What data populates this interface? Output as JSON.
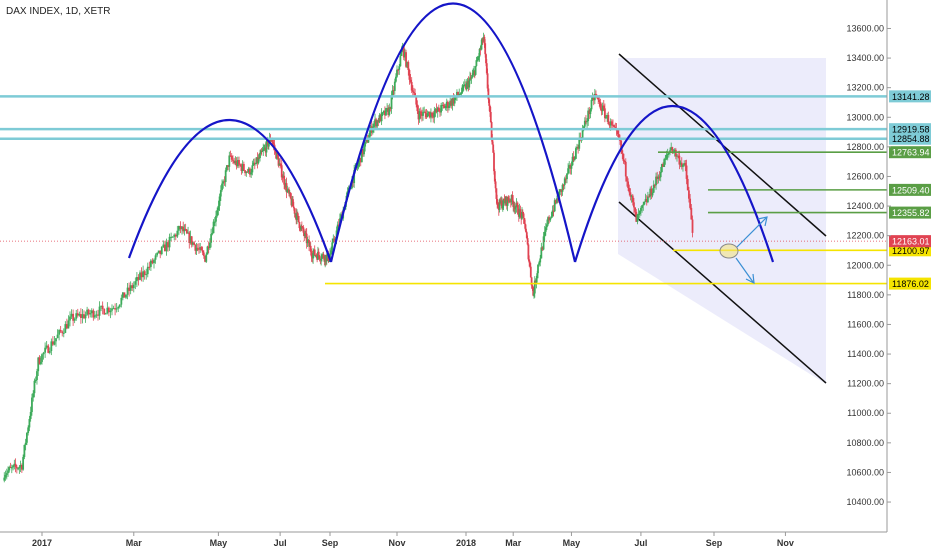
{
  "chart_data": {
    "type": "candlestick",
    "title": "DAX INDEX, 1D, XETR",
    "x_ticks": [
      "2017",
      "Mar",
      "May",
      "Jul",
      "Sep",
      "Nov",
      "2018",
      "Mar",
      "May",
      "Jul",
      "Sep",
      "Nov"
    ],
    "y_ticks": [
      10400,
      10600,
      10800,
      11000,
      11200,
      11400,
      11600,
      11800,
      12000,
      12200,
      12400,
      12600,
      12800,
      13000,
      13200,
      13400,
      13600
    ],
    "ylim": [
      10320,
      13760
    ],
    "last_price": 12163.01,
    "price_line": [
      {
        "label": "2016-12-02",
        "value": 10600
      },
      {
        "label": "2016-12-16",
        "value": 10650
      },
      {
        "label": "2016-12-29",
        "value": 11350
      },
      {
        "label": "2017-01-20",
        "value": 11640
      },
      {
        "label": "2017-02-17",
        "value": 11720
      },
      {
        "label": "2017-03-10",
        "value": 11980
      },
      {
        "label": "2017-03-31",
        "value": 12250
      },
      {
        "label": "2017-04-20",
        "value": 12050
      },
      {
        "label": "2017-05-10",
        "value": 12720
      },
      {
        "label": "2017-05-26",
        "value": 12630
      },
      {
        "label": "2017-06-20",
        "value": 12860
      },
      {
        "label": "2017-07-10",
        "value": 12500
      },
      {
        "label": "2017-07-25",
        "value": 12280
      },
      {
        "label": "2017-08-10",
        "value": 12080
      },
      {
        "label": "2017-08-31",
        "value": 12050
      },
      {
        "label": "2017-09-20",
        "value": 12550
      },
      {
        "label": "2017-10-10",
        "value": 12950
      },
      {
        "label": "2017-10-25",
        "value": 13050
      },
      {
        "label": "2017-11-06",
        "value": 13470
      },
      {
        "label": "2017-11-20",
        "value": 13020
      },
      {
        "label": "2017-12-05",
        "value": 13030
      },
      {
        "label": "2017-12-20",
        "value": 13110
      },
      {
        "label": "2018-01-10",
        "value": 13280
      },
      {
        "label": "2018-01-23",
        "value": 13540
      },
      {
        "label": "2018-02-09",
        "value": 12400
      },
      {
        "label": "2018-02-26",
        "value": 12450
      },
      {
        "label": "2018-03-15",
        "value": 12300
      },
      {
        "label": "2018-03-26",
        "value": 11800
      },
      {
        "label": "2018-04-10",
        "value": 12300
      },
      {
        "label": "2018-04-27",
        "value": 12600
      },
      {
        "label": "2018-05-22",
        "value": 13150
      },
      {
        "label": "2018-06-12",
        "value": 12850
      },
      {
        "label": "2018-06-27",
        "value": 12300
      },
      {
        "label": "2018-07-10",
        "value": 12500
      },
      {
        "label": "2018-07-27",
        "value": 12800
      },
      {
        "label": "2018-08-08",
        "value": 12650
      },
      {
        "label": "2018-08-15",
        "value": 12163
      }
    ],
    "horizontal_levels": [
      {
        "value": 13141.28,
        "label": "13141.28",
        "color": "#7ecbd6"
      },
      {
        "value": 12919.58,
        "label": "12919.58",
        "color": "#7ecbd6"
      },
      {
        "value": 12854.88,
        "label": "12854.88",
        "color": "#7ecbd6"
      },
      {
        "value": 12763.94,
        "label": "12763.94",
        "color": "#5a9e45"
      },
      {
        "value": 12509.4,
        "label": "12509.40",
        "color": "#5a9e45"
      },
      {
        "value": 12355.82,
        "label": "12355.82",
        "color": "#5a9e45"
      },
      {
        "value": 12100.97,
        "label": "12100.97",
        "color": "#f5e400"
      },
      {
        "value": 11876.02,
        "label": "11876.02",
        "color": "#f5e400"
      }
    ],
    "last_price_label": "12163.01",
    "colors": {
      "up": "#3daa5a",
      "down": "#e04352",
      "arc": "#1515c8",
      "channel": "#111111",
      "channel_fill": "#dcdcf8",
      "last_price": "#e04352"
    },
    "grid": false
  }
}
